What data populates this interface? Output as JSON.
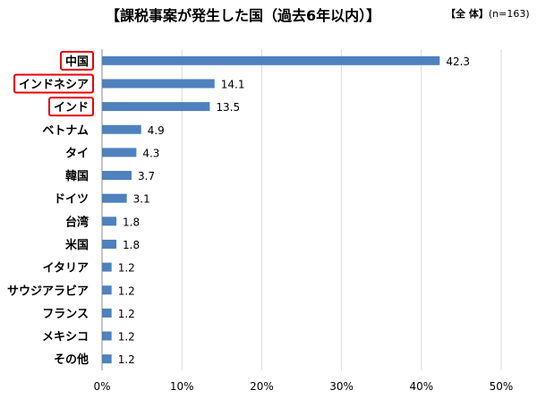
{
  "header": {
    "title": "【課税事案が発生した国（過去6年以内）】",
    "sample_label": "【全 体】",
    "sample_n": "(n=163)"
  },
  "chart_data": {
    "type": "bar",
    "orientation": "horizontal",
    "categories": [
      "中国",
      "インドネシア",
      "インド",
      "ベトナム",
      "タイ",
      "韓国",
      "ドイツ",
      "台湾",
      "米国",
      "イタリア",
      "サウジアラビア",
      "フランス",
      "メキシコ",
      "その他"
    ],
    "values": [
      42.3,
      14.1,
      13.5,
      4.9,
      4.3,
      3.7,
      3.1,
      1.8,
      1.8,
      1.2,
      1.2,
      1.2,
      1.2,
      1.2
    ],
    "value_labels": [
      "42.3",
      "14.1",
      "13.5",
      "4.9",
      "4.3",
      "3.7",
      "3.1",
      "1.8",
      "1.8",
      "1.2",
      "1.2",
      "1.2",
      "1.2",
      "1.2"
    ],
    "highlighted_categories": [
      "中国",
      "インドネシア",
      "インド"
    ],
    "xlim": [
      0,
      50
    ],
    "xticks": [
      "0%",
      "10%",
      "20%",
      "30%",
      "40%",
      "50%"
    ],
    "grid": true,
    "colors": {
      "bar": "#4f81bd",
      "grid": "#d9d9d9",
      "highlight": "#e8000b"
    }
  }
}
